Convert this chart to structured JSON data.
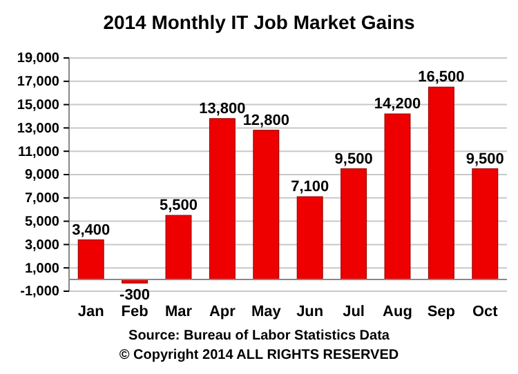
{
  "chart_data": {
    "type": "bar",
    "title": "2014 Monthly IT Job Market Gains",
    "categories": [
      "Jan",
      "Feb",
      "Mar",
      "Apr",
      "May",
      "Jun",
      "Jul",
      "Aug",
      "Sep",
      "Oct"
    ],
    "values": [
      3400,
      -300,
      5500,
      13800,
      12800,
      7100,
      9500,
      14200,
      16500,
      9500
    ],
    "color": "#ee0000",
    "ylim": [
      -1000,
      19000
    ],
    "yticks": [
      {
        "value": -1000,
        "label": "-1,000"
      },
      {
        "value": 1000,
        "label": "1,000"
      },
      {
        "value": 3000,
        "label": "3,000"
      },
      {
        "value": 5000,
        "label": "5,000"
      },
      {
        "value": 7000,
        "label": "7,000"
      },
      {
        "value": 9000,
        "label": "9,000"
      },
      {
        "value": 11000,
        "label": "11,000"
      },
      {
        "value": 13000,
        "label": "13,000"
      },
      {
        "value": 15000,
        "label": "15,000"
      },
      {
        "value": 17000,
        "label": "17,000"
      },
      {
        "value": 19000,
        "label": "19,000"
      }
    ],
    "grid": "y",
    "value_labels": [
      "3,400",
      "-300",
      "5,500",
      "13,800",
      "12,800",
      "7,100",
      "9,500",
      "14,200",
      "16,500",
      "9,500"
    ],
    "annotations": [
      "Source: Bureau of Labor Statistics Data",
      "© Copyright 2014 ALL RIGHTS RESERVED"
    ]
  }
}
